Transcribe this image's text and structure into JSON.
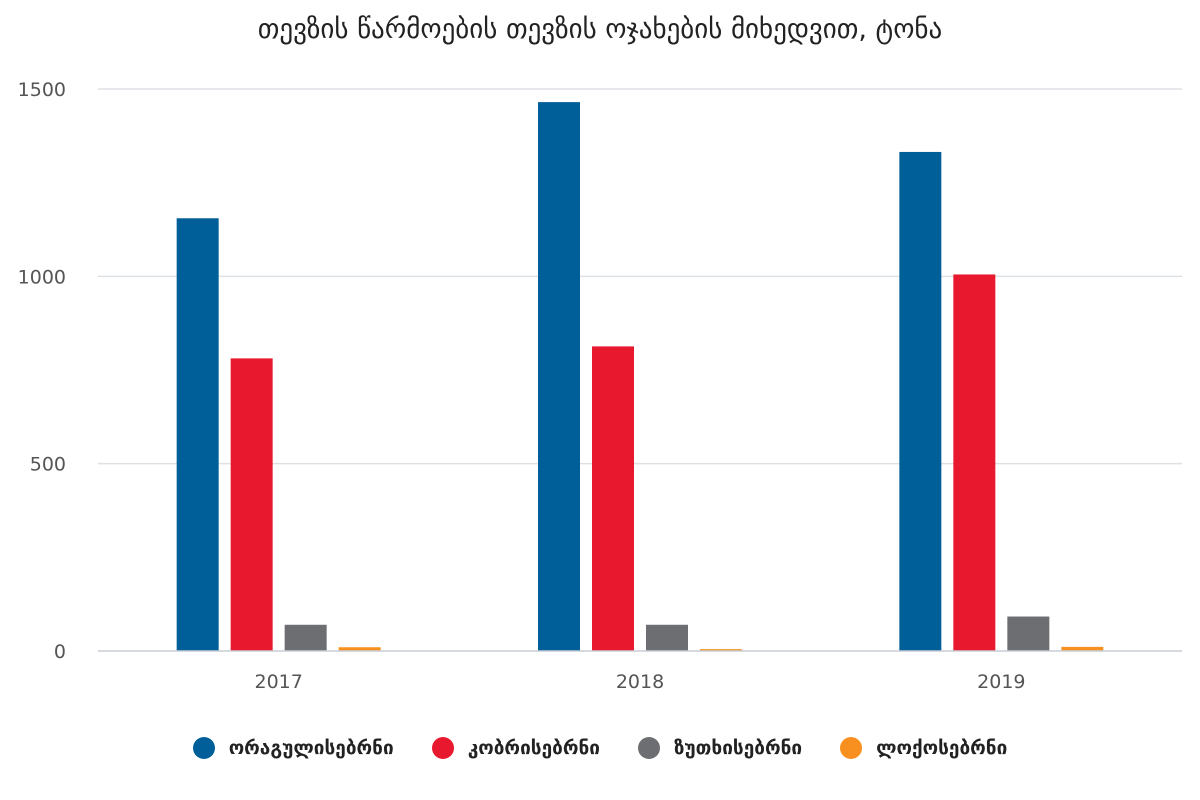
{
  "chart_data": {
    "type": "bar",
    "title": "თევზის წარმოების თევზის ოჯახების მიხედვით, ტონა",
    "categories": [
      "2017",
      "2018",
      "2019"
    ],
    "series": [
      {
        "name": "ორაგულისებრნი",
        "color": "#005f99",
        "values": [
          1155,
          1465,
          1332
        ]
      },
      {
        "name": "კობრისებრნი",
        "color": "#e8192f",
        "values": [
          781,
          813,
          1005
        ]
      },
      {
        "name": "ზუთხისებრნი",
        "color": "#6d6e71",
        "values": [
          70,
          70,
          92
        ]
      },
      {
        "name": "ლოქოსებრნი",
        "color": "#f7901e",
        "values": [
          10,
          5,
          11
        ]
      }
    ],
    "y_ticks": [
      "0",
      "500",
      "1000",
      "1500"
    ],
    "ylim": [
      0,
      1500
    ],
    "grid": true,
    "legend": "bottom"
  }
}
